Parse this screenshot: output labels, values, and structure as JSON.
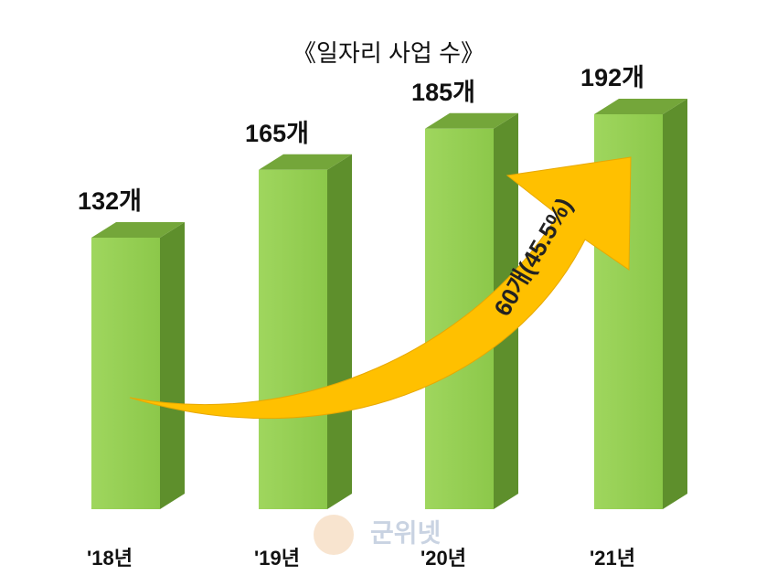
{
  "chart_data": {
    "type": "bar",
    "title": "《일자리 사업 수》",
    "categories": [
      "'18년",
      "'19년",
      "'20년",
      "'21년"
    ],
    "values": [
      132,
      165,
      185,
      192
    ],
    "value_labels": [
      "132개",
      "165개",
      "185개",
      "192개"
    ],
    "color": "#92d050",
    "ylim": [
      0,
      200
    ],
    "annotation": "60개(45.5%)",
    "watermark": "군위넷"
  }
}
